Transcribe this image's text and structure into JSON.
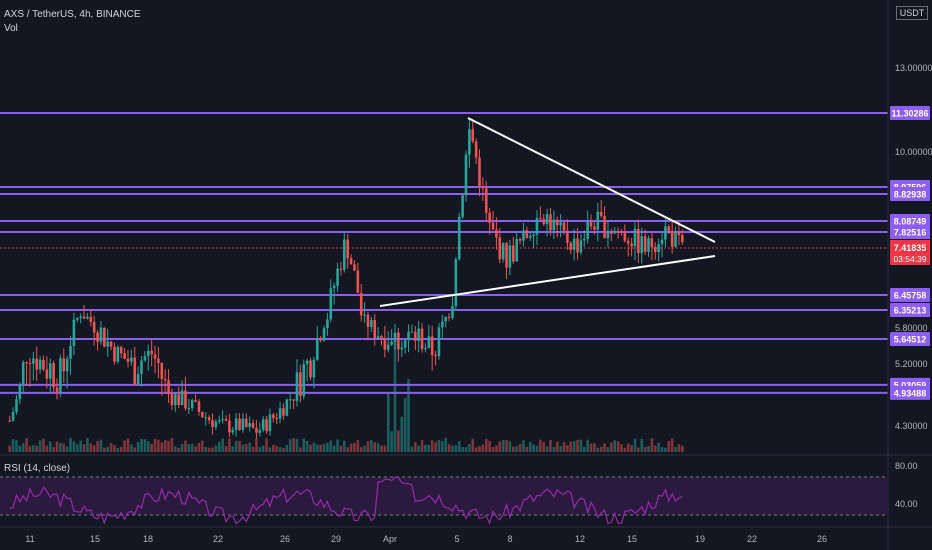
{
  "header": {
    "symbol_line": "AXS / TetherUS, 4h, BINANCE",
    "volume_label": "Vol",
    "unit": "USDT"
  },
  "rsi": {
    "label": "RSI (14, close)",
    "levels": [
      80,
      40
    ]
  },
  "colors": {
    "background": "#131722",
    "up": "#26a69a",
    "down": "#ef5350",
    "level_line": "#8e5cf7",
    "trendline": "#ffffff",
    "rsi_line": "#9c27b0",
    "rsi_band": "#2a1a3e",
    "last_price": "#f23645"
  },
  "chart_data": {
    "type": "candlestick",
    "price_ticks": [
      "13.00000",
      "10.00000",
      "5.80000",
      "5.20000",
      "4.30000"
    ],
    "x_ticks": [
      "11",
      "15",
      "18",
      "22",
      "26",
      "29",
      "Apr",
      "5",
      "8",
      "12",
      "15",
      "19",
      "22",
      "26"
    ],
    "levels": [
      {
        "value": 11.30286,
        "label": "11.30286"
      },
      {
        "value": 8.97596,
        "label": "8.97596"
      },
      {
        "value": 8.82938,
        "label": "8.82938"
      },
      {
        "value": 8.08749,
        "label": "8.08749"
      },
      {
        "value": 7.82516,
        "label": "7.82516"
      },
      {
        "value": 6.45758,
        "label": "6.45758"
      },
      {
        "value": 6.35213,
        "label": "6.35213"
      },
      {
        "value": 5.64512,
        "label": "5.64512"
      },
      {
        "value": 5.03059,
        "label": "5.03059"
      },
      {
        "value": 4.93488,
        "label": "4.93488"
      }
    ],
    "last_price": {
      "value": 7.41835,
      "label": "7.41835",
      "countdown": "03:54:39"
    },
    "price_path": [
      {
        "d": "11",
        "p": 4.4
      },
      {
        "d": "12",
        "p": 5.4
      },
      {
        "d": "13",
        "p": 5.2
      },
      {
        "d": "14",
        "p": 5.1
      },
      {
        "d": "15",
        "p": 6.3
      },
      {
        "d": "16",
        "p": 5.8
      },
      {
        "d": "17",
        "p": 5.4
      },
      {
        "d": "18",
        "p": 5.2
      },
      {
        "d": "19",
        "p": 5.4
      },
      {
        "d": "20",
        "p": 4.9
      },
      {
        "d": "21",
        "p": 4.75
      },
      {
        "d": "22",
        "p": 4.5
      },
      {
        "d": "23",
        "p": 4.3
      },
      {
        "d": "24",
        "p": 4.3
      },
      {
        "d": "25",
        "p": 4.2
      },
      {
        "d": "26",
        "p": 4.5
      },
      {
        "d": "27",
        "p": 4.9
      },
      {
        "d": "28",
        "p": 5.3
      },
      {
        "d": "29",
        "p": 6.2
      },
      {
        "d": "30",
        "p": 7.6
      },
      {
        "d": "31",
        "p": 6.0
      },
      {
        "d": "Apr",
        "p": 5.7
      },
      {
        "d": "2",
        "p": 5.6
      },
      {
        "d": "3",
        "p": 5.7
      },
      {
        "d": "4",
        "p": 5.4
      },
      {
        "d": "5",
        "p": 6.5
      },
      {
        "d": "5b",
        "p": 10.8
      },
      {
        "d": "6",
        "p": 8.0
      },
      {
        "d": "7",
        "p": 7.2
      },
      {
        "d": "8",
        "p": 7.6
      },
      {
        "d": "9",
        "p": 8.4
      },
      {
        "d": "10",
        "p": 7.8
      },
      {
        "d": "11",
        "p": 7.5
      },
      {
        "d": "12",
        "p": 8.1
      },
      {
        "d": "13",
        "p": 7.9
      },
      {
        "d": "14",
        "p": 7.7
      },
      {
        "d": "15",
        "p": 7.4
      },
      {
        "d": "16",
        "p": 7.9
      },
      {
        "d": "17",
        "p": 7.4
      }
    ]
  }
}
